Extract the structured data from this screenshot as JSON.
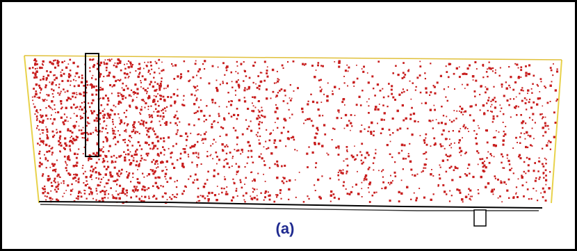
{
  "figure": {
    "panel_label": "(a)",
    "colors": {
      "particles": "#c81e1e",
      "tank_fill": "#ffffff",
      "outline": "#000000",
      "side_wall": "#e8d24a",
      "panel_label": "#1f2a8f"
    },
    "icons": {
      "tank": "tank-outline",
      "baffle": "vertical-baffle",
      "outlet": "outlet-pipe"
    }
  }
}
